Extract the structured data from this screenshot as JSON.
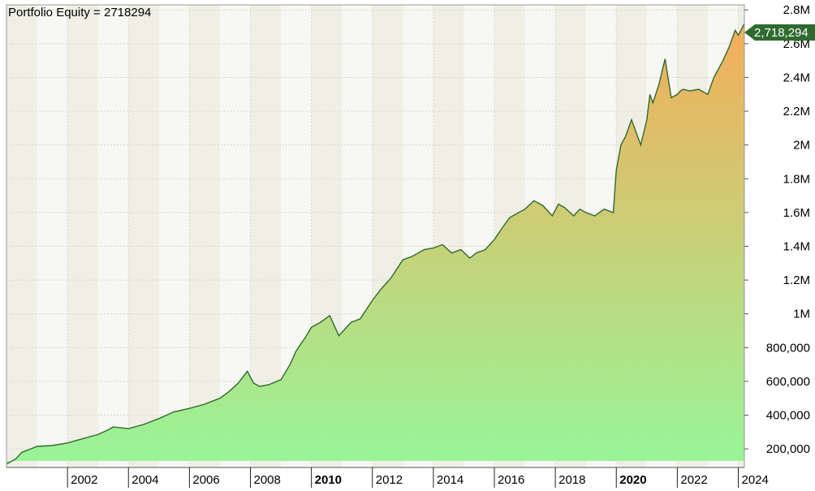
{
  "colors": {
    "band_a": "#f0efe6",
    "band_b": "#f7f7f3",
    "line": "#2f6b2f",
    "fill_top": "#f5ad5a",
    "fill_bottom": "#98f598",
    "marker": "#2f6b2f"
  },
  "chart_data": {
    "type": "area",
    "title": "Portfolio Equity = 2718294",
    "grid": true,
    "last_value_label": "2,718,294",
    "xlim": [
      2000.0,
      2024.2
    ],
    "ylim": [
      90000,
      2830000
    ],
    "y_ticks": [
      {
        "value": 200000,
        "label": "200,000"
      },
      {
        "value": 400000,
        "label": "400,000"
      },
      {
        "value": 600000,
        "label": "600,000"
      },
      {
        "value": 800000,
        "label": "800,000"
      },
      {
        "value": 1000000,
        "label": "1M"
      },
      {
        "value": 1200000,
        "label": "1.2M"
      },
      {
        "value": 1400000,
        "label": "1.4M"
      },
      {
        "value": 1600000,
        "label": "1.6M"
      },
      {
        "value": 1800000,
        "label": "1.8M"
      },
      {
        "value": 2000000,
        "label": "2M"
      },
      {
        "value": 2200000,
        "label": "2.2M"
      },
      {
        "value": 2400000,
        "label": "2.4M"
      },
      {
        "value": 2600000,
        "label": "2.6M"
      },
      {
        "value": 2800000,
        "label": "2.8M"
      }
    ],
    "x_ticks": [
      {
        "value": 2002,
        "label": "2002",
        "bold": false
      },
      {
        "value": 2004,
        "label": "2004",
        "bold": false
      },
      {
        "value": 2006,
        "label": "2006",
        "bold": false
      },
      {
        "value": 2008,
        "label": "2008",
        "bold": false
      },
      {
        "value": 2010,
        "label": "2010",
        "bold": true
      },
      {
        "value": 2012,
        "label": "2012",
        "bold": false
      },
      {
        "value": 2014,
        "label": "2014",
        "bold": false
      },
      {
        "value": 2016,
        "label": "2016",
        "bold": false
      },
      {
        "value": 2018,
        "label": "2018",
        "bold": false
      },
      {
        "value": 2020,
        "label": "2020",
        "bold": true
      },
      {
        "value": 2022,
        "label": "2022",
        "bold": false
      },
      {
        "value": 2024,
        "label": "2024",
        "bold": false
      }
    ],
    "series": [
      {
        "x": [
          2000.0,
          2000.3,
          2000.5,
          2000.8,
          2001.0,
          2001.5,
          2002.0,
          2002.5,
          2003.0,
          2003.3,
          2003.5,
          2004.0,
          2004.5,
          2005.0,
          2005.5,
          2006.0,
          2006.5,
          2007.0,
          2007.3,
          2007.6,
          2007.9,
          2008.1,
          2008.3,
          2008.6,
          2009.0,
          2009.3,
          2009.5,
          2009.8,
          2010.0,
          2010.3,
          2010.6,
          2010.9,
          2011.3,
          2011.45,
          2011.6,
          2012.0,
          2012.3,
          2012.6,
          2013.0,
          2013.3,
          2013.5,
          2013.7,
          2014.0,
          2014.3,
          2014.6,
          2014.9,
          2015.2,
          2015.4,
          2015.7,
          2016.0,
          2016.3,
          2016.5,
          2016.8,
          2017.0,
          2017.3,
          2017.6,
          2017.9,
          2018.1,
          2018.3,
          2018.6,
          2018.8,
          2019.0,
          2019.3,
          2019.6,
          2019.9,
          2020.0,
          2020.15,
          2020.3,
          2020.5,
          2020.8,
          2021.0,
          2021.1,
          2021.2,
          2021.4,
          2021.6,
          2021.8,
          2022.0,
          2022.1,
          2022.2,
          2022.4,
          2022.7,
          2023.0,
          2023.2,
          2023.5,
          2023.7,
          2023.9,
          2024.0,
          2024.2
        ],
        "values": [
          110000,
          140000,
          180000,
          200000,
          215000,
          220000,
          235000,
          260000,
          285000,
          310000,
          330000,
          320000,
          345000,
          380000,
          420000,
          440000,
          465000,
          500000,
          540000,
          590000,
          660000,
          590000,
          570000,
          580000,
          610000,
          700000,
          780000,
          860000,
          920000,
          950000,
          990000,
          870000,
          950000,
          960000,
          970000,
          1080000,
          1150000,
          1210000,
          1320000,
          1340000,
          1360000,
          1380000,
          1390000,
          1410000,
          1360000,
          1380000,
          1330000,
          1360000,
          1380000,
          1440000,
          1520000,
          1570000,
          1600000,
          1620000,
          1670000,
          1640000,
          1580000,
          1650000,
          1630000,
          1580000,
          1620000,
          1600000,
          1580000,
          1620000,
          1600000,
          1850000,
          2000000,
          2050000,
          2150000,
          2000000,
          2150000,
          2300000,
          2250000,
          2360000,
          2510000,
          2280000,
          2300000,
          2320000,
          2330000,
          2320000,
          2330000,
          2300000,
          2400000,
          2500000,
          2580000,
          2680000,
          2650000,
          2718294
        ]
      }
    ]
  }
}
